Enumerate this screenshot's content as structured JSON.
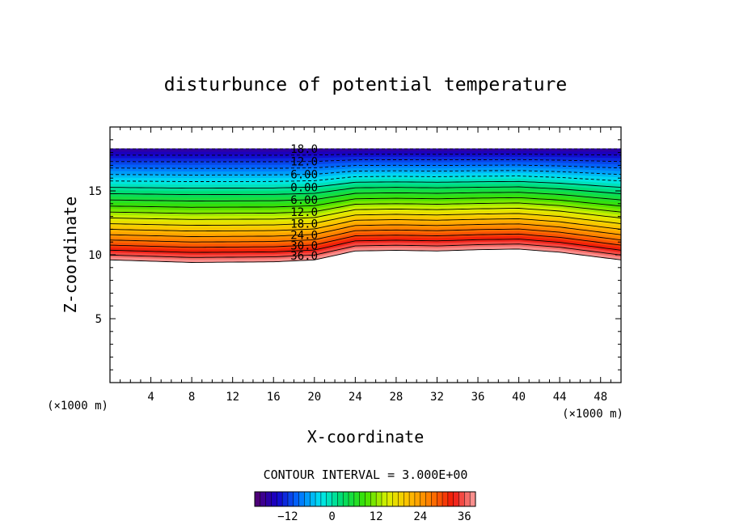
{
  "chart_data": {
    "type": "heatmap",
    "title": "disturbunce of potential temperature",
    "xlabel": "X-coordinate",
    "ylabel": "Z-coordinate",
    "x_unit_left": "(×1000 m)",
    "x_unit_right": "(×1000 m)",
    "xlim": [
      0,
      50
    ],
    "ylim": [
      0,
      20
    ],
    "x_ticks": [
      4,
      8,
      12,
      16,
      20,
      24,
      28,
      32,
      36,
      40,
      44,
      48
    ],
    "x_tick_labels": [
      "4",
      "8",
      "12",
      "16",
      "20",
      "24",
      "28",
      "32",
      "36",
      "40",
      "44",
      "48"
    ],
    "y_ticks": [
      5,
      10,
      15
    ],
    "y_tick_labels": [
      "5",
      "10",
      "15"
    ],
    "contour_interval_text": "CONTOUR INTERVAL = 3.000E+00",
    "contour_interval": 3,
    "field_range": [
      -18,
      39
    ],
    "field_top_z": 18.3,
    "colorbar": {
      "min": -21,
      "max": 39,
      "tick_values": [
        -12,
        0,
        12,
        24,
        36
      ],
      "tick_labels": [
        "−12",
        "0",
        "12",
        "24",
        "36"
      ]
    },
    "contour_labels": [
      {
        "text": "18.0",
        "level": -18
      },
      {
        "text": "12.0",
        "level": -12
      },
      {
        "text": "6.00",
        "level": -6
      },
      {
        "text": "0.00",
        "level": 0
      },
      {
        "text": "6.00",
        "level": 6
      },
      {
        "text": "12.0",
        "level": 12
      },
      {
        "text": "18.0",
        "level": 18
      },
      {
        "text": "24.0",
        "level": 24
      },
      {
        "text": "30.0",
        "level": 30
      },
      {
        "text": "36.0",
        "level": 36
      }
    ],
    "label_x": 19,
    "profile_x": [
      0,
      8,
      16,
      20,
      24,
      28,
      32,
      36,
      40,
      44,
      50
    ],
    "profile_bottom_z": [
      9.6,
      9.4,
      9.45,
      9.6,
      10.3,
      10.35,
      10.3,
      10.4,
      10.45,
      10.2,
      9.6
    ],
    "profile_dip": [
      1.0,
      1.0,
      1.0,
      0.92,
      0.35,
      0.3,
      0.35,
      0.33,
      0.3,
      0.5,
      1.0
    ]
  }
}
